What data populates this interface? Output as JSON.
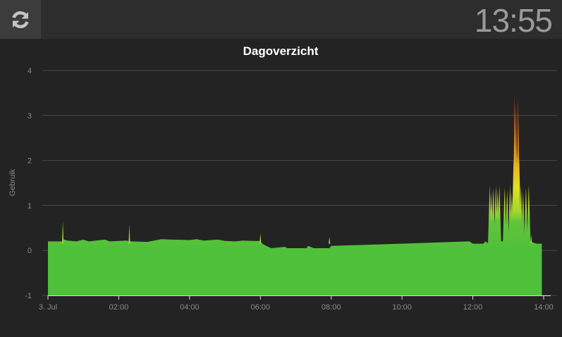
{
  "header": {
    "time": "13:55",
    "refresh_icon": "refresh-icon"
  },
  "colors": {
    "background": "#232323",
    "topbar": "#2d2d2d",
    "button": "#3c3c3c",
    "low": "#4fc03a",
    "mid": "#d9e020",
    "high": "#e2561f"
  },
  "chart_data": {
    "type": "area",
    "title": "Dagoverzicht",
    "ylabel": "Gebruik",
    "xlabel": "",
    "ylim": [
      -1,
      4
    ],
    "xlim": [
      0,
      14.2
    ],
    "yticks": [
      -1,
      0,
      1,
      2,
      3,
      4
    ],
    "xticks": [
      {
        "value": 0,
        "label": "3. Jul"
      },
      {
        "value": 2,
        "label": "02:00"
      },
      {
        "value": 4,
        "label": "04:00"
      },
      {
        "value": 6,
        "label": "06:00"
      },
      {
        "value": 8,
        "label": "08:00"
      },
      {
        "value": 10,
        "label": "10:00"
      },
      {
        "value": 12,
        "label": "12:00"
      },
      {
        "value": 14,
        "label": "14:00"
      }
    ],
    "base": [
      [
        0,
        0.2
      ],
      [
        0.4,
        0.2
      ],
      [
        0.42,
        0.25
      ],
      [
        0.55,
        0.22
      ],
      [
        0.8,
        0.2
      ],
      [
        1.0,
        0.24
      ],
      [
        1.15,
        0.2
      ],
      [
        1.6,
        0.24
      ],
      [
        1.75,
        0.2
      ],
      [
        2.2,
        0.22
      ],
      [
        2.35,
        0.2
      ],
      [
        2.8,
        0.19
      ],
      [
        3.0,
        0.22
      ],
      [
        3.2,
        0.25
      ],
      [
        3.5,
        0.24
      ],
      [
        4.0,
        0.23
      ],
      [
        4.2,
        0.25
      ],
      [
        4.4,
        0.22
      ],
      [
        4.8,
        0.24
      ],
      [
        5.0,
        0.21
      ],
      [
        5.3,
        0.2
      ],
      [
        5.5,
        0.22
      ],
      [
        5.8,
        0.21
      ],
      [
        6.0,
        0.21
      ],
      [
        6.05,
        0.15
      ],
      [
        6.3,
        0.05
      ],
      [
        6.7,
        0.08
      ],
      [
        6.75,
        0.05
      ],
      [
        7.3,
        0.05
      ],
      [
        7.35,
        0.1
      ],
      [
        7.5,
        0.05
      ],
      [
        7.95,
        0.05
      ],
      [
        8.0,
        0.1
      ],
      [
        10.0,
        0.15
      ],
      [
        11.9,
        0.2
      ],
      [
        12.0,
        0.15
      ],
      [
        12.3,
        0.15
      ],
      [
        12.35,
        0.2
      ],
      [
        12.45,
        0.15
      ],
      [
        12.6,
        0.2
      ],
      [
        12.8,
        0.2
      ],
      [
        13.0,
        0.22
      ],
      [
        13.3,
        0.25
      ],
      [
        13.6,
        0.2
      ],
      [
        13.8,
        0.15
      ],
      [
        13.95,
        0.15
      ]
    ],
    "spikes": [
      [
        0.42,
        0.65
      ],
      [
        2.3,
        0.58
      ],
      [
        6.0,
        0.38
      ],
      [
        7.95,
        0.3
      ],
      [
        12.48,
        1.45
      ],
      [
        12.53,
        1.3
      ],
      [
        12.58,
        1.4
      ],
      [
        12.65,
        1.45
      ],
      [
        12.7,
        1.35
      ],
      [
        12.75,
        1.45
      ],
      [
        12.9,
        1.4
      ],
      [
        12.97,
        1.35
      ],
      [
        13.05,
        1.45
      ],
      [
        13.1,
        1.3
      ],
      [
        13.15,
        2.05
      ],
      [
        13.18,
        3.5
      ],
      [
        13.22,
        3.3
      ],
      [
        13.25,
        2.2
      ],
      [
        13.28,
        3.4
      ],
      [
        13.31,
        2.1
      ],
      [
        13.36,
        1.45
      ],
      [
        13.42,
        1.3
      ],
      [
        13.5,
        1.4
      ],
      [
        13.58,
        1.45
      ],
      [
        13.65,
        0.35
      ]
    ]
  }
}
